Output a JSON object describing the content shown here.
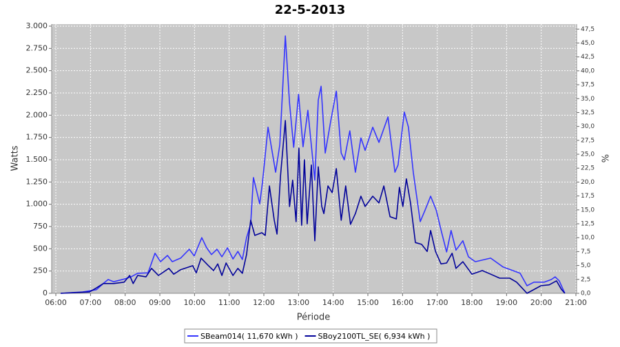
{
  "chart_data": {
    "type": "line",
    "title": "22-5-2013",
    "x_label": "Période",
    "y_label": "Watts",
    "y2_label": "%",
    "grid": true,
    "legend": "bottom",
    "xlim": [
      5.88,
      21.02
    ],
    "xticks": [
      {
        "value": 6,
        "label": "06:00"
      },
      {
        "value": 7,
        "label": "07:00"
      },
      {
        "value": 8,
        "label": "08:00"
      },
      {
        "value": 9,
        "label": "09:00"
      },
      {
        "value": 10,
        "label": "10:00"
      },
      {
        "value": 11,
        "label": "11:00"
      },
      {
        "value": 12,
        "label": "12:00"
      },
      {
        "value": 13,
        "label": "13:00"
      },
      {
        "value": 14,
        "label": "14:00"
      },
      {
        "value": 15,
        "label": "15:00"
      },
      {
        "value": 16,
        "label": "16:00"
      },
      {
        "value": 17,
        "label": "17:00"
      },
      {
        "value": 18,
        "label": "18:00"
      },
      {
        "value": 19,
        "label": "19:00"
      },
      {
        "value": 20,
        "label": "20:00"
      },
      {
        "value": 21,
        "label": "21:00"
      }
    ],
    "ylim": [
      0,
      3023
    ],
    "yticks": [
      0,
      250,
      500,
      750,
      {
        "value": 1000,
        "label": "1.000"
      },
      {
        "value": 1250,
        "label": "1.250"
      },
      {
        "value": 1500,
        "label": "1.500"
      },
      {
        "value": 1750,
        "label": "1.750"
      },
      {
        "value": 2000,
        "label": "2.000"
      },
      {
        "value": 2250,
        "label": "2.250"
      },
      {
        "value": 2500,
        "label": "2.500"
      },
      {
        "value": 2750,
        "label": "2.750"
      },
      {
        "value": 3000,
        "label": "3.000"
      }
    ],
    "y2lim": [
      0,
      48.4
    ],
    "y2ticks": [
      {
        "value": 0,
        "label": "0,0"
      },
      {
        "value": 2.5,
        "label": "2,5"
      },
      {
        "value": 5,
        "label": "5,0"
      },
      {
        "value": 7.5,
        "label": "7,5"
      },
      {
        "value": 10,
        "label": "10,0"
      },
      {
        "value": 12.5,
        "label": "12,5"
      },
      {
        "value": 15,
        "label": "15,0"
      },
      {
        "value": 17.5,
        "label": "17,5"
      },
      {
        "value": 20,
        "label": "20,0"
      },
      {
        "value": 22.5,
        "label": "22,5"
      },
      {
        "value": 25,
        "label": "25,0"
      },
      {
        "value": 27.5,
        "label": "27,5"
      },
      {
        "value": 30,
        "label": "30,0"
      },
      {
        "value": 32.5,
        "label": "32,5"
      },
      {
        "value": 35,
        "label": "35,0"
      },
      {
        "value": 37.5,
        "label": "37,5"
      },
      {
        "value": 40,
        "label": "40,0"
      },
      {
        "value": 42.5,
        "label": "42,5"
      },
      {
        "value": 45,
        "label": "45,0"
      },
      {
        "value": 47.5,
        "label": "47,5"
      }
    ],
    "series": [
      {
        "name": "SBeam014( 11,670 kWh )",
        "color": "#3333ff",
        "x": [
          6.14,
          6.77,
          7.17,
          7.37,
          7.51,
          7.67,
          7.97,
          8.17,
          8.36,
          8.66,
          8.86,
          9.02,
          9.22,
          9.36,
          9.6,
          9.85,
          9.99,
          10.21,
          10.35,
          10.49,
          10.65,
          10.79,
          10.95,
          11.11,
          11.25,
          11.38,
          11.5,
          11.62,
          11.7,
          11.88,
          11.96,
          12.12,
          12.34,
          12.46,
          12.62,
          12.74,
          12.86,
          13.0,
          13.13,
          13.27,
          13.47,
          13.57,
          13.65,
          13.77,
          13.93,
          14.09,
          14.23,
          14.32,
          14.48,
          14.64,
          14.8,
          14.92,
          15.14,
          15.32,
          15.58,
          15.78,
          15.87,
          16.05,
          16.17,
          16.31,
          16.51,
          16.65,
          16.81,
          16.97,
          17.13,
          17.27,
          17.4,
          17.54,
          17.74,
          17.9,
          18.1,
          18.54,
          18.9,
          19.39,
          19.59,
          19.79,
          20.09,
          20.29,
          20.4,
          20.52,
          20.68
        ],
        "values": [
          0,
          15,
          40,
          110,
          155,
          130,
          160,
          185,
          225,
          230,
          450,
          355,
          425,
          355,
          395,
          495,
          420,
          625,
          510,
          435,
          495,
          410,
          510,
          385,
          470,
          380,
          625,
          780,
          1300,
          1005,
          1245,
          1865,
          1360,
          1670,
          2890,
          2135,
          1640,
          2235,
          1645,
          2055,
          1270,
          2170,
          2325,
          1575,
          1940,
          2270,
          1575,
          1500,
          1825,
          1360,
          1745,
          1605,
          1865,
          1695,
          1980,
          1360,
          1440,
          2035,
          1865,
          1360,
          805,
          935,
          1090,
          935,
          680,
          465,
          705,
          485,
          590,
          410,
          355,
          395,
          295,
          225,
          85,
          125,
          125,
          155,
          185,
          140,
          0
        ]
      },
      {
        "name": "SBoy2100TL_SE( 6,934 kWh )",
        "color": "#000099",
        "x": [
          6.14,
          6.97,
          7.17,
          7.37,
          7.67,
          7.97,
          8.13,
          8.23,
          8.36,
          8.6,
          8.76,
          8.96,
          9.26,
          9.4,
          9.6,
          9.95,
          10.05,
          10.19,
          10.39,
          10.55,
          10.67,
          10.79,
          10.91,
          11.11,
          11.25,
          11.38,
          11.5,
          11.62,
          11.74,
          11.94,
          12.04,
          12.16,
          12.3,
          12.38,
          12.48,
          12.62,
          12.74,
          12.83,
          12.93,
          13.01,
          13.09,
          13.17,
          13.25,
          13.37,
          13.47,
          13.57,
          13.67,
          13.73,
          13.85,
          13.97,
          14.09,
          14.23,
          14.36,
          14.5,
          14.64,
          14.8,
          14.92,
          15.14,
          15.32,
          15.46,
          15.64,
          15.82,
          15.91,
          16.01,
          16.11,
          16.23,
          16.37,
          16.55,
          16.71,
          16.81,
          16.95,
          17.11,
          17.27,
          17.43,
          17.54,
          17.74,
          18.0,
          18.3,
          18.54,
          18.8,
          19.09,
          19.29,
          19.59,
          19.99,
          20.23,
          20.44,
          20.58,
          20.68
        ],
        "values": [
          0,
          15,
          60,
          110,
          110,
          125,
          200,
          110,
          200,
          185,
          280,
          200,
          280,
          215,
          265,
          310,
          230,
          395,
          315,
          255,
          330,
          200,
          340,
          200,
          280,
          225,
          435,
          820,
          650,
          680,
          650,
          1205,
          820,
          665,
          1320,
          1940,
          975,
          1270,
          805,
          1630,
          765,
          1500,
          780,
          1440,
          590,
          1420,
          975,
          895,
          1205,
          1130,
          1400,
          820,
          1205,
          775,
          895,
          1090,
          975,
          1090,
          1015,
          1205,
          860,
          835,
          1190,
          975,
          1285,
          1015,
          570,
          550,
          470,
          705,
          470,
          330,
          340,
          450,
          280,
          355,
          215,
          255,
          215,
          170,
          170,
          125,
          0,
          85,
          95,
          140,
          45,
          0
        ]
      }
    ]
  }
}
